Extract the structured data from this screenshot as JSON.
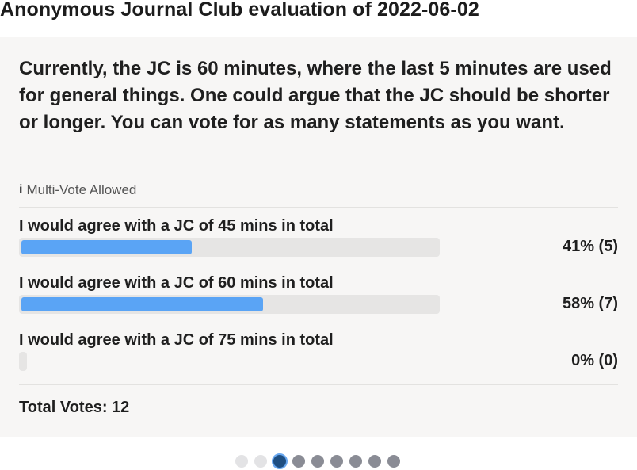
{
  "page": {
    "title": "Anonymous Journal Club evaluation of 2022-06-02"
  },
  "poll": {
    "question": "Currently, the JC is 60 minutes, where the last 5 minutes are used for general things. One could argue that the JC should be shorter or longer. You can vote for as many statements as you want.",
    "multi_vote_icon": "i",
    "multi_vote_label": "Multi-Vote Allowed",
    "options": [
      {
        "label": "I would agree with a JC of 45 mins in total",
        "percent": 41,
        "votes": 5,
        "result_text": "41% (5)"
      },
      {
        "label": "I would agree with a JC of 60 mins in total",
        "percent": 58,
        "votes": 7,
        "result_text": "58% (7)"
      },
      {
        "label": "I would agree with a JC of 75 mins in total",
        "percent": 0,
        "votes": 0,
        "result_text": "0% (0)"
      }
    ],
    "total_votes_text": "Total Votes: 12",
    "total_votes": 12
  },
  "pagination": {
    "count": 9,
    "active_index": 2,
    "faint_indices": [
      0,
      1
    ]
  },
  "colors": {
    "bar_fill": "#5aa4f5",
    "bar_track": "#e6e5e4",
    "card_background": "#f7f6f5",
    "dot_active": "#1f4f82",
    "dot_inactive": "#8a8c95"
  }
}
